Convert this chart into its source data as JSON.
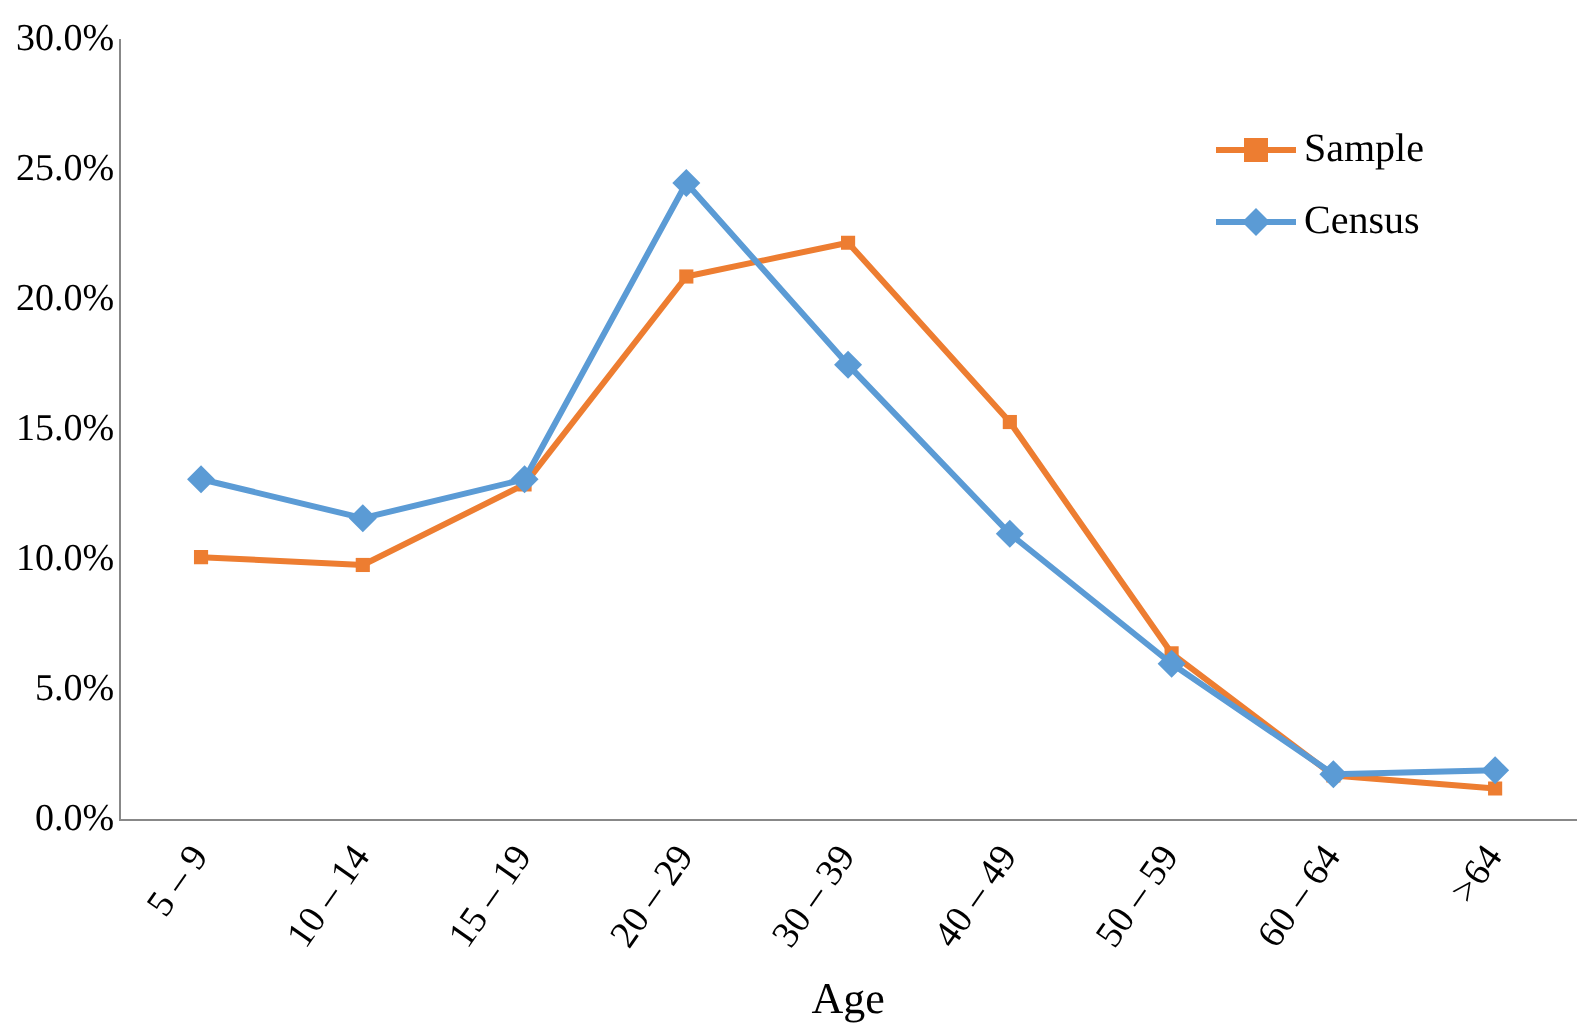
{
  "chart_data": {
    "type": "line",
    "xlabel": "Age",
    "categories": [
      "5 – 9",
      "10 – 14",
      "15 – 19",
      "20 – 29",
      "30 – 39",
      "40 – 49",
      "50 – 59",
      "60 – 64",
      ">64"
    ],
    "series": [
      {
        "name": "Sample",
        "color": "#ed7d31",
        "marker": "square",
        "values": [
          10.1,
          9.8,
          12.9,
          20.9,
          22.2,
          15.3,
          6.4,
          1.7,
          1.2
        ]
      },
      {
        "name": "Census",
        "color": "#5b9bd5",
        "marker": "diamond",
        "values": [
          13.1,
          11.6,
          13.1,
          24.5,
          17.5,
          11.0,
          6.0,
          1.75,
          1.9
        ]
      }
    ],
    "ylim": [
      0,
      30
    ],
    "yticks": [
      {
        "value": 0,
        "label": "0.0%"
      },
      {
        "value": 5,
        "label": "5.0%"
      },
      {
        "value": 10,
        "label": "10.0%"
      },
      {
        "value": 15,
        "label": "15.0%"
      },
      {
        "value": 20,
        "label": "20.0%"
      },
      {
        "value": 25,
        "label": "25.0%"
      },
      {
        "value": 30,
        "label": "30.0%"
      }
    ],
    "grid": false,
    "legend": "top right",
    "line_style": "solid"
  }
}
